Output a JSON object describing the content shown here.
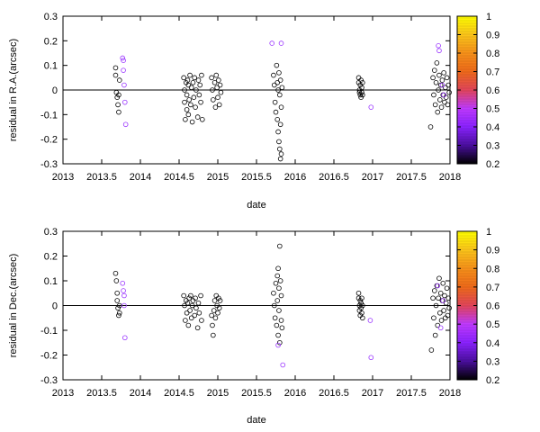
{
  "chart_data": [
    {
      "type": "scatter",
      "xlabel": "date",
      "ylabel": "residual in R.A.(arcsec)",
      "xlim": [
        2013,
        2018
      ],
      "ylim": [
        -0.3,
        0.3
      ],
      "xticks": [
        "2013",
        "2013.5",
        "2014",
        "2014.5",
        "2015",
        "2015.5",
        "2016",
        "2016.5",
        "2017",
        "2017.5",
        "2018"
      ],
      "yticks": [
        "-0.3",
        "-0.2",
        "-0.1",
        "0",
        "0.1",
        "0.2",
        "0.3"
      ],
      "grid": false,
      "zero_line": true,
      "marker": "open-circle",
      "series": [
        {
          "color": "#000000",
          "points": [
            [
              2013.68,
              0.09
            ],
            [
              2013.68,
              0.06
            ],
            [
              2013.69,
              -0.01
            ],
            [
              2013.7,
              -0.03
            ],
            [
              2013.71,
              -0.06
            ],
            [
              2013.72,
              -0.09
            ],
            [
              2013.73,
              0.04
            ],
            [
              2013.72,
              -0.02
            ],
            [
              2014.56,
              0.05
            ],
            [
              2014.57,
              0.0
            ],
            [
              2014.57,
              -0.05
            ],
            [
              2014.58,
              -0.12
            ],
            [
              2014.59,
              0.03
            ],
            [
              2014.6,
              -0.08
            ],
            [
              2014.6,
              -0.02
            ],
            [
              2014.61,
              0.04
            ],
            [
              2014.62,
              -0.1
            ],
            [
              2014.62,
              0.02
            ],
            [
              2014.63,
              -0.04
            ],
            [
              2014.64,
              0.06
            ],
            [
              2014.65,
              -0.06
            ],
            [
              2014.66,
              0.01
            ],
            [
              2014.67,
              -0.13
            ],
            [
              2014.68,
              0.03
            ],
            [
              2014.69,
              -0.03
            ],
            [
              2014.7,
              0.05
            ],
            [
              2014.71,
              -0.07
            ],
            [
              2014.72,
              0.0
            ],
            [
              2014.74,
              -0.11
            ],
            [
              2014.75,
              0.04
            ],
            [
              2014.76,
              -0.02
            ],
            [
              2014.77,
              0.02
            ],
            [
              2014.78,
              -0.05
            ],
            [
              2014.79,
              0.06
            ],
            [
              2014.8,
              -0.12
            ],
            [
              2014.92,
              0.05
            ],
            [
              2014.93,
              0.0
            ],
            [
              2014.94,
              -0.04
            ],
            [
              2014.96,
              0.03
            ],
            [
              2014.97,
              -0.07
            ],
            [
              2014.98,
              0.06
            ],
            [
              2014.99,
              0.01
            ],
            [
              2015.0,
              -0.03
            ],
            [
              2015.01,
              0.04
            ],
            [
              2015.02,
              -0.06
            ],
            [
              2015.03,
              0.02
            ],
            [
              2015.04,
              -0.01
            ],
            [
              2015.72,
              0.06
            ],
            [
              2015.73,
              0.02
            ],
            [
              2015.74,
              -0.05
            ],
            [
              2015.75,
              -0.09
            ],
            [
              2015.76,
              0.1
            ],
            [
              2015.77,
              0.03
            ],
            [
              2015.77,
              -0.12
            ],
            [
              2015.78,
              -0.17
            ],
            [
              2015.78,
              0.0
            ],
            [
              2015.79,
              -0.21
            ],
            [
              2015.79,
              0.07
            ],
            [
              2015.8,
              -0.24
            ],
            [
              2015.8,
              -0.02
            ],
            [
              2015.81,
              -0.28
            ],
            [
              2015.81,
              0.04
            ],
            [
              2015.81,
              -0.14
            ],
            [
              2015.82,
              -0.07
            ],
            [
              2015.82,
              -0.26
            ],
            [
              2015.83,
              0.01
            ],
            [
              2016.82,
              0.05
            ],
            [
              2016.82,
              0.03
            ],
            [
              2016.83,
              0.0
            ],
            [
              2016.83,
              -0.01
            ],
            [
              2016.84,
              0.02
            ],
            [
              2016.84,
              -0.02
            ],
            [
              2016.85,
              0.04
            ],
            [
              2016.85,
              -0.03
            ],
            [
              2016.86,
              0.01
            ],
            [
              2016.86,
              -0.01
            ],
            [
              2016.87,
              0.03
            ],
            [
              2016.87,
              -0.02
            ],
            [
              2017.75,
              -0.15
            ],
            [
              2017.78,
              0.05
            ],
            [
              2017.79,
              -0.02
            ],
            [
              2017.8,
              0.08
            ],
            [
              2017.81,
              -0.06
            ],
            [
              2017.82,
              0.03
            ],
            [
              2017.83,
              0.11
            ],
            [
              2017.84,
              -0.09
            ],
            [
              2017.85,
              0.0
            ],
            [
              2017.86,
              0.06
            ],
            [
              2017.87,
              -0.04
            ],
            [
              2017.88,
              0.02
            ],
            [
              2017.89,
              -0.07
            ],
            [
              2017.9,
              0.04
            ],
            [
              2017.91,
              -0.02
            ],
            [
              2017.92,
              0.07
            ],
            [
              2017.93,
              -0.05
            ],
            [
              2017.94,
              0.01
            ],
            [
              2017.95,
              -0.03
            ],
            [
              2017.96,
              0.05
            ],
            [
              2017.97,
              -0.06
            ],
            [
              2017.98,
              0.02
            ],
            [
              2017.99,
              -0.01
            ]
          ]
        },
        {
          "color": "#9933ff",
          "points": [
            [
              2013.77,
              0.13
            ],
            [
              2013.78,
              0.12
            ],
            [
              2013.78,
              0.08
            ],
            [
              2013.79,
              0.02
            ],
            [
              2013.8,
              -0.05
            ],
            [
              2013.81,
              -0.14
            ],
            [
              2015.7,
              0.19
            ],
            [
              2015.82,
              0.19
            ],
            [
              2016.98,
              -0.07
            ],
            [
              2017.85,
              0.18
            ],
            [
              2017.86,
              0.16
            ],
            [
              2017.9,
              0.02
            ],
            [
              2017.92,
              -0.02
            ]
          ]
        }
      ]
    },
    {
      "type": "scatter",
      "xlabel": "date",
      "ylabel": "residual in Dec.(arcsec)",
      "xlim": [
        2013,
        2018
      ],
      "ylim": [
        -0.3,
        0.3
      ],
      "xticks": [
        "2013",
        "2013.5",
        "2014",
        "2014.5",
        "2015",
        "2015.5",
        "2016",
        "2016.5",
        "2017",
        "2017.5",
        "2018"
      ],
      "yticks": [
        "-0.3",
        "-0.2",
        "-0.1",
        "0",
        "0.1",
        "0.2",
        "0.3"
      ],
      "grid": false,
      "zero_line": true,
      "marker": "open-circle",
      "series": [
        {
          "color": "#000000",
          "points": [
            [
              2013.68,
              0.13
            ],
            [
              2013.69,
              0.1
            ],
            [
              2013.7,
              0.05
            ],
            [
              2013.7,
              0.02
            ],
            [
              2013.71,
              -0.01
            ],
            [
              2013.72,
              -0.04
            ],
            [
              2013.73,
              -0.03
            ],
            [
              2013.73,
              0.0
            ],
            [
              2014.56,
              0.04
            ],
            [
              2014.57,
              0.0
            ],
            [
              2014.58,
              -0.06
            ],
            [
              2014.59,
              0.02
            ],
            [
              2014.6,
              -0.03
            ],
            [
              2014.61,
              0.01
            ],
            [
              2014.62,
              -0.08
            ],
            [
              2014.63,
              0.03
            ],
            [
              2014.64,
              -0.02
            ],
            [
              2014.65,
              0.04
            ],
            [
              2014.66,
              -0.05
            ],
            [
              2014.67,
              0.0
            ],
            [
              2014.68,
              0.02
            ],
            [
              2014.7,
              -0.04
            ],
            [
              2014.71,
              0.03
            ],
            [
              2014.72,
              -0.01
            ],
            [
              2014.74,
              -0.09
            ],
            [
              2014.75,
              0.01
            ],
            [
              2014.76,
              -0.03
            ],
            [
              2014.78,
              0.04
            ],
            [
              2014.79,
              -0.06
            ],
            [
              2014.92,
              -0.04
            ],
            [
              2014.93,
              -0.08
            ],
            [
              2014.94,
              -0.12
            ],
            [
              2014.95,
              -0.02
            ],
            [
              2014.96,
              0.02
            ],
            [
              2014.97,
              -0.05
            ],
            [
              2014.98,
              0.04
            ],
            [
              2014.99,
              0.0
            ],
            [
              2015.0,
              -0.03
            ],
            [
              2015.01,
              0.03
            ],
            [
              2015.02,
              -0.01
            ],
            [
              2015.03,
              0.02
            ],
            [
              2015.72,
              0.05
            ],
            [
              2015.73,
              0.0
            ],
            [
              2015.74,
              -0.05
            ],
            [
              2015.75,
              0.09
            ],
            [
              2015.76,
              -0.08
            ],
            [
              2015.77,
              0.12
            ],
            [
              2015.77,
              0.02
            ],
            [
              2015.78,
              -0.12
            ],
            [
              2015.78,
              0.15
            ],
            [
              2015.79,
              -0.02
            ],
            [
              2015.79,
              0.07
            ],
            [
              2015.8,
              0.24
            ],
            [
              2015.8,
              -0.15
            ],
            [
              2015.81,
              0.1
            ],
            [
              2015.82,
              -0.06
            ],
            [
              2015.82,
              0.04
            ],
            [
              2015.83,
              -0.09
            ],
            [
              2016.82,
              0.05
            ],
            [
              2016.82,
              0.03
            ],
            [
              2016.83,
              0.0
            ],
            [
              2016.83,
              -0.02
            ],
            [
              2016.84,
              0.02
            ],
            [
              2016.84,
              -0.04
            ],
            [
              2016.85,
              0.01
            ],
            [
              2016.85,
              -0.01
            ],
            [
              2016.86,
              0.03
            ],
            [
              2016.86,
              -0.03
            ],
            [
              2016.87,
              0.0
            ],
            [
              2016.87,
              -0.05
            ],
            [
              2017.76,
              -0.18
            ],
            [
              2017.78,
              0.03
            ],
            [
              2017.79,
              -0.05
            ],
            [
              2017.8,
              0.06
            ],
            [
              2017.81,
              -0.12
            ],
            [
              2017.82,
              0.0
            ],
            [
              2017.83,
              0.08
            ],
            [
              2017.84,
              -0.08
            ],
            [
              2017.85,
              0.03
            ],
            [
              2017.86,
              0.11
            ],
            [
              2017.87,
              -0.03
            ],
            [
              2017.88,
              0.05
            ],
            [
              2017.89,
              -0.06
            ],
            [
              2017.9,
              0.02
            ],
            [
              2017.91,
              0.09
            ],
            [
              2017.92,
              -0.02
            ],
            [
              2017.93,
              0.04
            ],
            [
              2017.94,
              -0.05
            ],
            [
              2017.95,
              0.01
            ],
            [
              2017.96,
              0.07
            ],
            [
              2017.97,
              -0.04
            ],
            [
              2017.98,
              0.03
            ],
            [
              2017.99,
              -0.01
            ]
          ]
        },
        {
          "color": "#9933ff",
          "points": [
            [
              2013.77,
              0.09
            ],
            [
              2013.78,
              0.06
            ],
            [
              2013.79,
              0.04
            ],
            [
              2013.79,
              0.0
            ],
            [
              2013.8,
              -0.13
            ],
            [
              2015.78,
              -0.16
            ],
            [
              2015.84,
              -0.24
            ],
            [
              2016.97,
              -0.06
            ],
            [
              2016.98,
              -0.21
            ],
            [
              2017.84,
              0.08
            ],
            [
              2017.88,
              -0.09
            ],
            [
              2017.91,
              0.02
            ]
          ]
        }
      ]
    }
  ],
  "colorbar": {
    "ticks": [
      "0.2",
      "0.3",
      "0.4",
      "0.5",
      "0.6",
      "0.7",
      "0.8",
      "0.9",
      "1"
    ],
    "range": [
      0.2,
      1
    ],
    "colors": [
      "#000000",
      "#4b0fa0",
      "#8a22ff",
      "#c03aff",
      "#e2455a",
      "#ef6a1a",
      "#f7911a",
      "#fbc51a",
      "#ffff00"
    ]
  }
}
